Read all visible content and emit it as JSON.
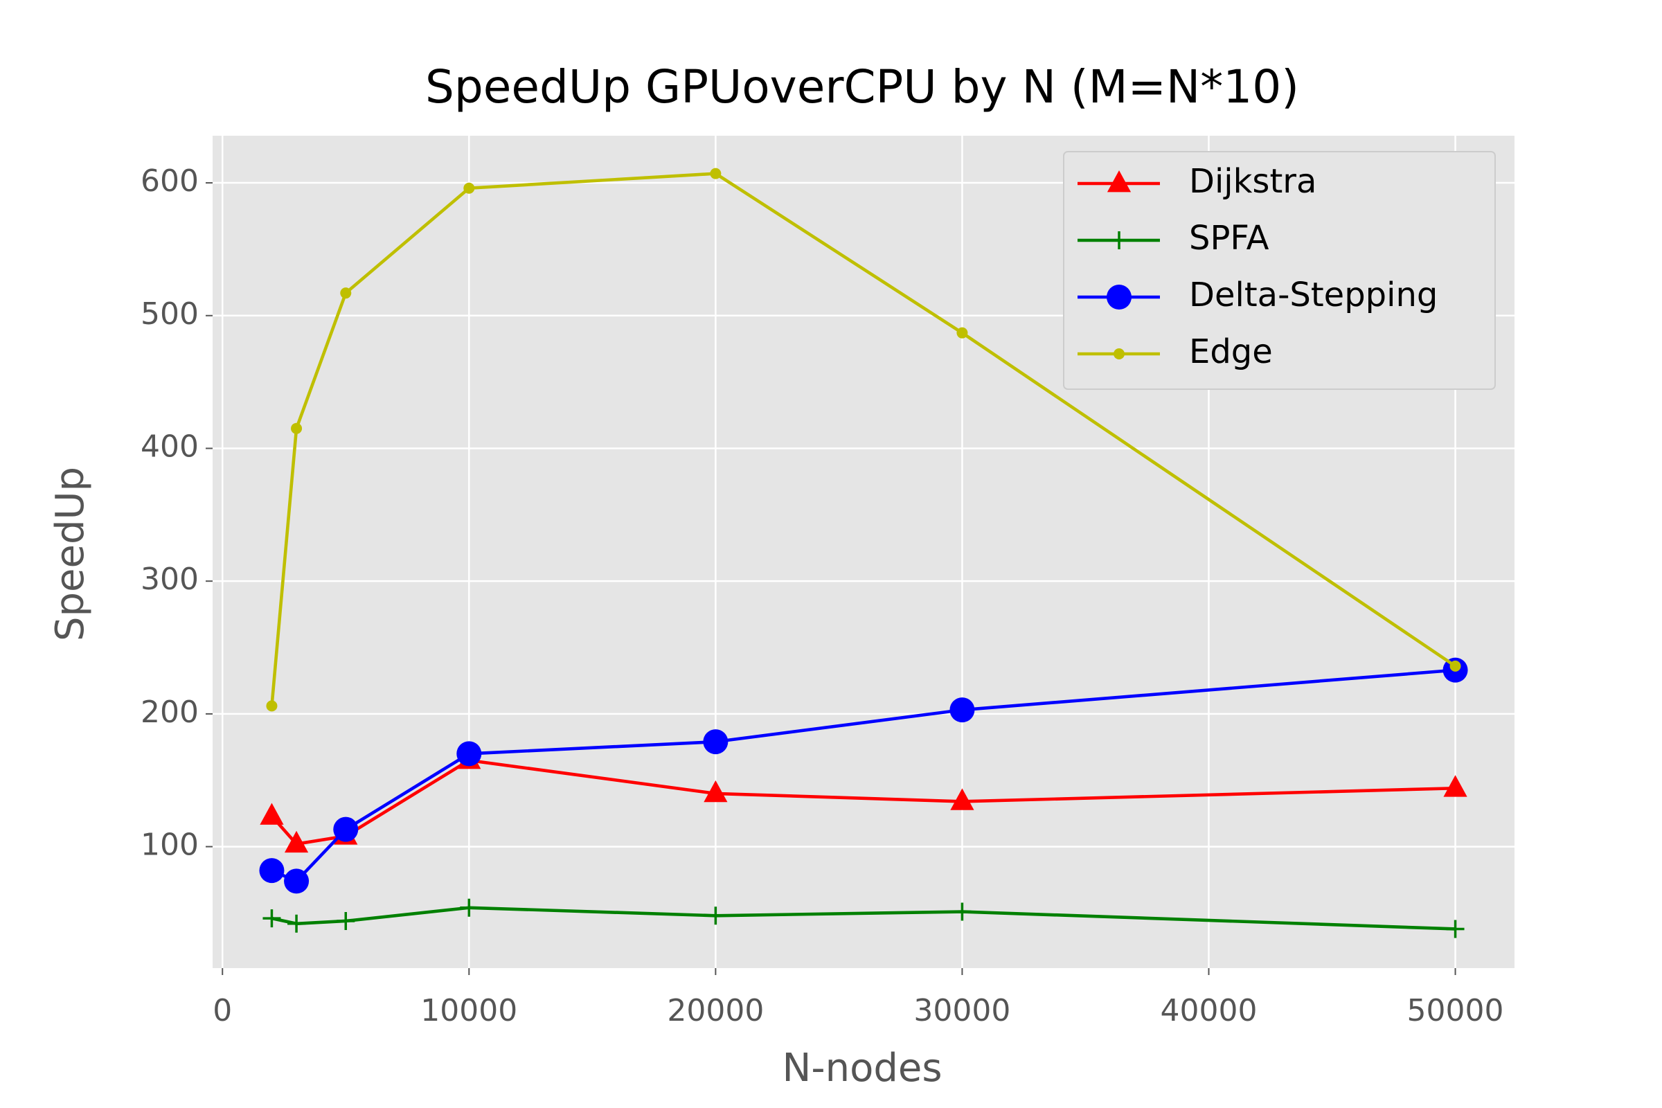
{
  "chart_data": {
    "type": "line",
    "title": "SpeedUp GPUoverCPU by N (M=N*10)",
    "x_label": "N-nodes",
    "y_label": "SpeedUp",
    "x": [
      2000,
      3000,
      5000,
      10000,
      20000,
      30000,
      50000
    ],
    "series": [
      {
        "name": "Dijkstra",
        "color": "#ff0000",
        "marker": "triangle",
        "values": [
          123,
          102,
          108,
          165,
          140,
          134,
          144
        ]
      },
      {
        "name": "SPFA",
        "color": "#008000",
        "marker": "plus",
        "values": [
          46,
          42,
          44,
          54,
          48,
          51,
          38
        ]
      },
      {
        "name": "Delta-Stepping",
        "color": "#0000ff",
        "marker": "circle",
        "values": [
          82,
          74,
          113,
          170,
          179,
          203,
          233
        ]
      },
      {
        "name": "Edge",
        "color": "#bfbf00",
        "marker": "dot",
        "values": [
          206,
          415,
          517,
          596,
          607,
          487,
          236
        ]
      }
    ],
    "xlim": [
      -400,
      52400
    ],
    "ylim": [
      8.5,
      635.5
    ],
    "xticks": [
      0,
      10000,
      20000,
      30000,
      40000,
      50000
    ],
    "yticks": [
      100,
      200,
      300,
      400,
      500,
      600
    ],
    "grid": true,
    "legend": "upper right"
  }
}
